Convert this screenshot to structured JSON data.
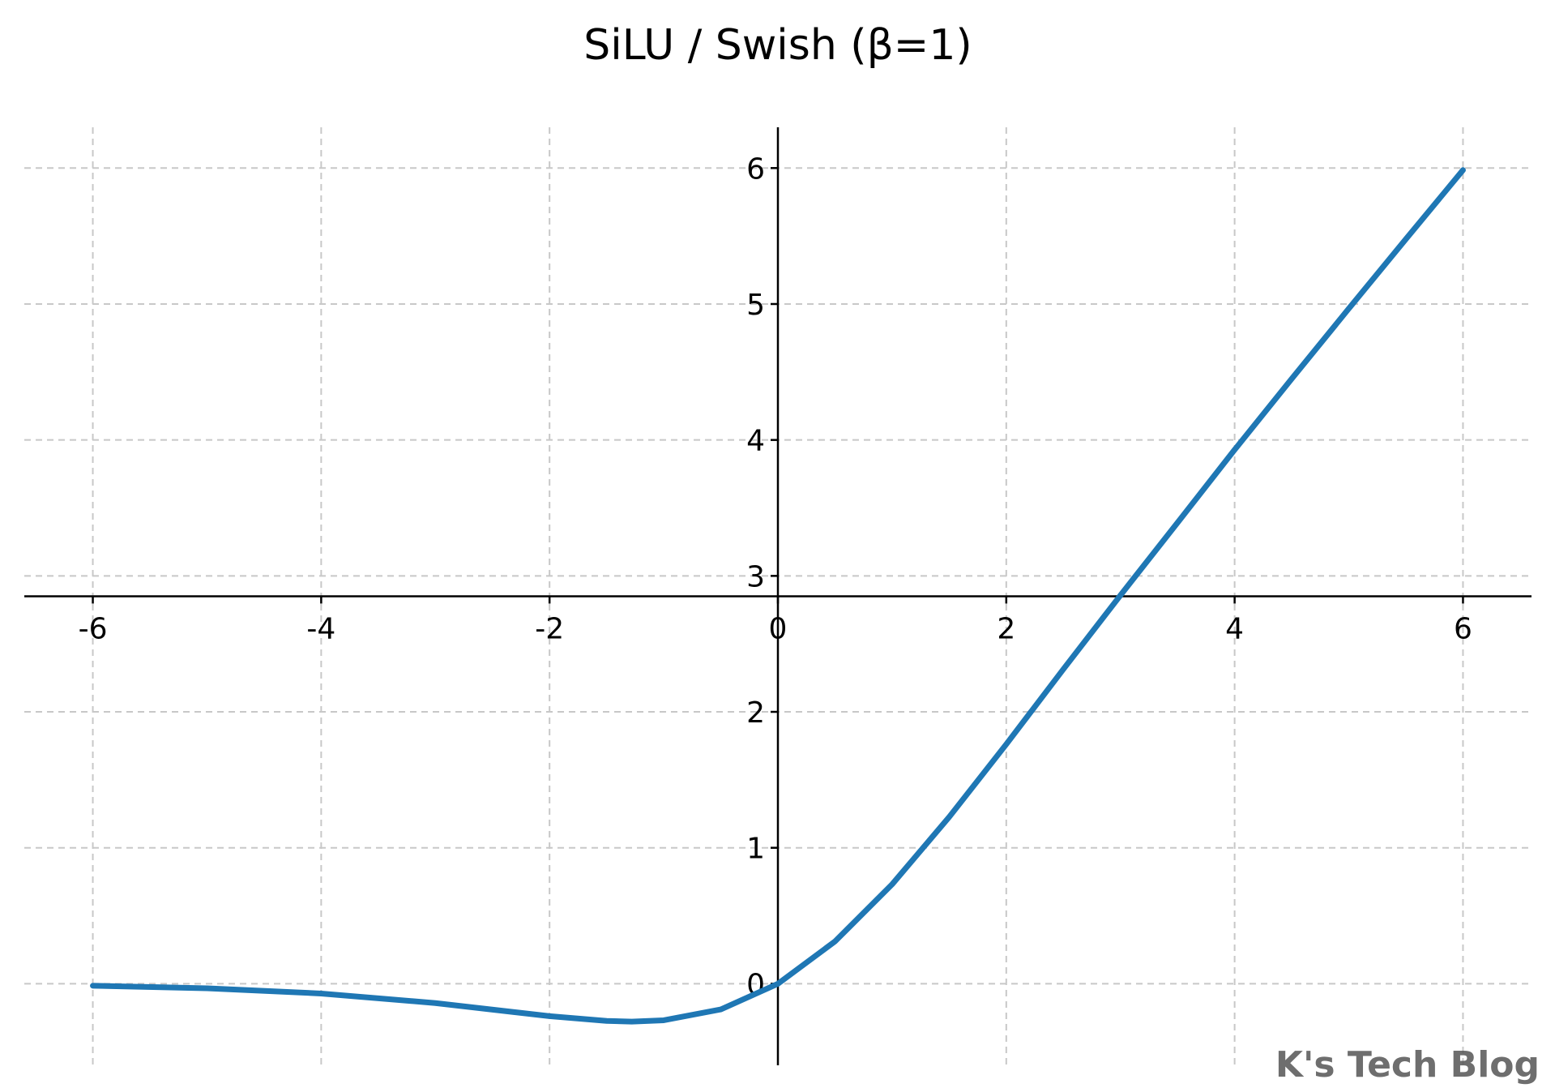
{
  "chart_data": {
    "type": "line",
    "title": "SiLU / Swish (β=1)",
    "xlabel": "",
    "ylabel": "",
    "xlim": [
      -6.6,
      6.6
    ],
    "ylim": [
      -0.6,
      6.3
    ],
    "xticks": [
      -6,
      -4,
      -2,
      0,
      2,
      4,
      6
    ],
    "xtick_labels": [
      "-6",
      "-4",
      "-2",
      "0",
      "2",
      "4",
      "6"
    ],
    "yticks": [
      0,
      1,
      2,
      3,
      4,
      5,
      6
    ],
    "ytick_labels": [
      "0",
      "1",
      "2",
      "3",
      "4",
      "5",
      "6"
    ],
    "x_axis_crosses_y_at": 2.85,
    "grid": true,
    "legend": "none",
    "series": [
      {
        "color": "#1f77b4",
        "x": [
          -6,
          -5,
          -4,
          -3,
          -2,
          -1.5,
          -1.28,
          -1,
          -0.5,
          0,
          0.5,
          1,
          1.5,
          2,
          2.5,
          3,
          3.5,
          4,
          4.5,
          5,
          5.5,
          6
        ],
        "y": [
          -0.0148,
          -0.0335,
          -0.0719,
          -0.1423,
          -0.2384,
          -0.2736,
          -0.2785,
          -0.2689,
          -0.1888,
          0,
          0.3112,
          0.7311,
          1.2264,
          1.7616,
          2.3136,
          2.8577,
          3.3916,
          3.9281,
          4.4502,
          4.9665,
          5.4777,
          5.9852
        ]
      }
    ]
  },
  "watermark": {
    "text": "K's Tech Blog"
  }
}
